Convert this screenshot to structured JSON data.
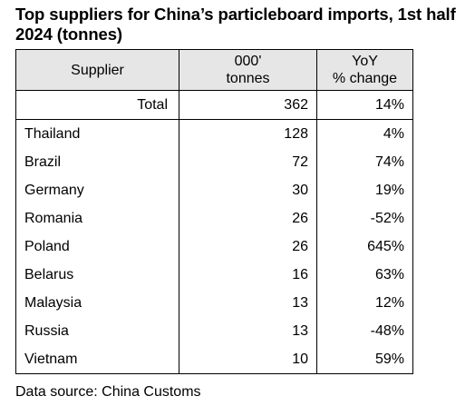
{
  "title": "Top suppliers for China’s particleboard imports, 1st half 2024 (tonnes)",
  "source": "Data source: China Customs",
  "chart_data": {
    "type": "table",
    "title": "Top suppliers for China’s particleboard imports, 1st half 2024 (tonnes)",
    "headers": {
      "supplier": "Supplier",
      "tonnes": [
        "000'",
        "tonnes"
      ],
      "yoy": [
        "YoY",
        "% change"
      ]
    },
    "total": {
      "label": "Total",
      "tonnes": "362",
      "yoy": "14%"
    },
    "rows": [
      {
        "supplier": "Thailand",
        "tonnes": "128",
        "yoy": "4%"
      },
      {
        "supplier": "Brazil",
        "tonnes": "72",
        "yoy": "74%"
      },
      {
        "supplier": "Germany",
        "tonnes": "30",
        "yoy": "19%"
      },
      {
        "supplier": "Romania",
        "tonnes": "26",
        "yoy": "-52%"
      },
      {
        "supplier": "Poland",
        "tonnes": "26",
        "yoy": "645%"
      },
      {
        "supplier": "Belarus",
        "tonnes": "16",
        "yoy": "63%"
      },
      {
        "supplier": "Malaysia",
        "tonnes": "13",
        "yoy": "12%"
      },
      {
        "supplier": "Russia",
        "tonnes": "13",
        "yoy": "-48%"
      },
      {
        "supplier": "Vietnam",
        "tonnes": "10",
        "yoy": "59%"
      }
    ]
  }
}
